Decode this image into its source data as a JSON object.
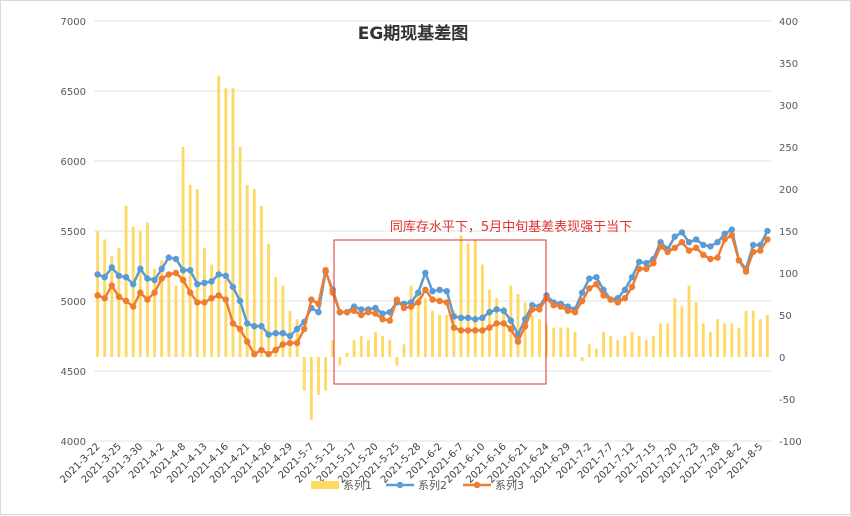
{
  "chart_data": {
    "type": "bar+line",
    "title": "EG期现基差图",
    "annotation": "同库存水平下，5月中旬基差表现强于当下",
    "xlabel": "",
    "ylabel": "",
    "ylim": [
      4000,
      7000
    ],
    "y2lim": [
      -100,
      400
    ],
    "y_ticks": [
      "7000",
      "6500",
      "6000",
      "5500",
      "5000",
      "4500",
      "4000"
    ],
    "y2_ticks": [
      "400",
      "350",
      "300",
      "250",
      "200",
      "150",
      "100",
      "50",
      "0",
      "-50",
      "-100"
    ],
    "grid": "horizontal",
    "legend_position": "bottom",
    "categories": [
      "2021-3-22",
      "2021-3-23",
      "2021-3-24",
      "2021-3-25",
      "2021-3-26",
      "2021-3-29",
      "2021-3-30",
      "2021-3-31",
      "2021-4-1",
      "2021-4-2",
      "2021-4-6",
      "2021-4-7",
      "2021-4-8",
      "2021-4-9",
      "2021-4-12",
      "2021-4-13",
      "2021-4-14",
      "2021-4-15",
      "2021-4-16",
      "2021-4-19",
      "2021-4-20",
      "2021-4-21",
      "2021-4-22",
      "2021-4-23",
      "2021-4-26",
      "2021-4-27",
      "2021-4-28",
      "2021-4-29",
      "2021-4-30",
      "2021-5-6",
      "2021-5-7",
      "2021-5-10",
      "2021-5-11",
      "2021-5-12",
      "2021-5-13",
      "2021-5-14",
      "2021-5-17",
      "2021-5-18",
      "2021-5-19",
      "2021-5-20",
      "2021-5-21",
      "2021-5-24",
      "2021-5-25",
      "2021-5-26",
      "2021-5-27",
      "2021-5-28",
      "2021-5-31",
      "2021-6-1",
      "2021-6-2",
      "2021-6-3",
      "2021-6-4",
      "2021-6-7",
      "2021-6-8",
      "2021-6-9",
      "2021-6-10",
      "2021-6-11",
      "2021-6-15",
      "2021-6-16",
      "2021-6-17",
      "2021-6-18",
      "2021-6-21",
      "2021-6-22",
      "2021-6-23",
      "2021-6-24",
      "2021-6-25",
      "2021-6-28",
      "2021-6-29",
      "2021-6-30",
      "2021-7-1",
      "2021-7-2",
      "2021-7-5",
      "2021-7-6",
      "2021-7-7",
      "2021-7-8",
      "2021-7-9",
      "2021-7-12",
      "2021-7-13",
      "2021-7-14",
      "2021-7-15",
      "2021-7-16",
      "2021-7-19",
      "2021-7-20",
      "2021-7-21",
      "2021-7-22",
      "2021-7-23",
      "2021-7-26",
      "2021-7-27",
      "2021-7-28",
      "2021-7-29",
      "2021-7-30",
      "2021-8-2",
      "2021-8-3",
      "2021-8-4",
      "2021-8-5",
      "2021-8-6"
    ],
    "x_tick_labels": [
      "2021-3-22",
      "2021-3-25",
      "2021-3-30",
      "2021-4-2",
      "2021-4-8",
      "2021-4-13",
      "2021-4-16",
      "2021-4-21",
      "2021-4-26",
      "2021-4-29",
      "2021-5-7",
      "2021-5-12",
      "2021-5-17",
      "2021-5-20",
      "2021-5-25",
      "2021-5-28",
      "2021-6-2",
      "2021-6-7",
      "2021-6-10",
      "2021-6-16",
      "2021-6-21",
      "2021-6-24",
      "2021-6-29",
      "2021-7-2",
      "2021-7-7",
      "2021-7-12",
      "2021-7-15",
      "2021-7-20",
      "2021-7-23",
      "2021-7-28",
      "2021-8-2",
      "2021-8-5"
    ],
    "series": [
      {
        "name": "系列1",
        "type": "bar",
        "axis": "secondary",
        "color": "#ffd966",
        "values": [
          150,
          140,
          120,
          130,
          180,
          155,
          150,
          160,
          105,
          115,
          95,
          85,
          250,
          205,
          200,
          130,
          110,
          335,
          320,
          320,
          250,
          205,
          200,
          180,
          135,
          95,
          85,
          55,
          45,
          -40,
          -75,
          -45,
          -40,
          20,
          -10,
          5,
          20,
          25,
          20,
          30,
          25,
          20,
          -10,
          15,
          85,
          75,
          70,
          55,
          50,
          50,
          55,
          145,
          135,
          140,
          110,
          80,
          70,
          60,
          85,
          75,
          65,
          50,
          45,
          40,
          35,
          35,
          35,
          30,
          -5,
          15,
          10,
          30,
          25,
          20,
          25,
          30,
          25,
          20,
          25,
          40,
          40,
          70,
          60,
          85,
          65,
          40,
          30,
          45,
          40,
          40,
          35,
          55,
          55,
          45,
          50
        ]
      },
      {
        "name": "系列2",
        "type": "line",
        "axis": "primary",
        "color": "#5b9bd5",
        "values": [
          5190,
          5170,
          5240,
          5180,
          5170,
          5120,
          5230,
          5160,
          5150,
          5230,
          5310,
          5300,
          5220,
          5220,
          5120,
          5130,
          5140,
          5190,
          5180,
          5100,
          5000,
          4840,
          4820,
          4820,
          4760,
          4770,
          4770,
          4750,
          4800,
          4850,
          4950,
          4920,
          5210,
          5080,
          4920,
          4920,
          4960,
          4940,
          4940,
          4950,
          4910,
          4920,
          4990,
          4980,
          4990,
          5060,
          5200,
          5070,
          5080,
          5070,
          4890,
          4880,
          4880,
          4870,
          4880,
          4920,
          4940,
          4930,
          4860,
          4760,
          4870,
          4970,
          4960,
          5040,
          4990,
          4980,
          4960,
          4940,
          5060,
          5160,
          5170,
          5080,
          5010,
          5020,
          5080,
          5170,
          5280,
          5270,
          5300,
          5420,
          5370,
          5460,
          5490,
          5420,
          5440,
          5400,
          5390,
          5420,
          5480,
          5510,
          5290,
          5230,
          5400,
          5400,
          5500
        ]
      },
      {
        "name": "系列3",
        "type": "line",
        "axis": "primary",
        "color": "#ed7d31",
        "values": [
          5040,
          5020,
          5110,
          5030,
          5000,
          4960,
          5060,
          5010,
          5060,
          5160,
          5190,
          5200,
          5150,
          5060,
          4990,
          4990,
          5020,
          5040,
          5010,
          4840,
          4800,
          4710,
          4620,
          4650,
          4620,
          4650,
          4690,
          4700,
          4700,
          4800,
          5010,
          4980,
          5220,
          5060,
          4920,
          4920,
          4930,
          4900,
          4920,
          4910,
          4870,
          4860,
          5010,
          4950,
          4960,
          4990,
          5080,
          5010,
          5000,
          4990,
          4810,
          4790,
          4790,
          4790,
          4790,
          4810,
          4840,
          4840,
          4800,
          4710,
          4820,
          4940,
          4940,
          5020,
          4970,
          4960,
          4930,
          4920,
          5000,
          5090,
          5120,
          5040,
          5010,
          4990,
          5020,
          5100,
          5230,
          5230,
          5270,
          5390,
          5350,
          5380,
          5420,
          5360,
          5380,
          5330,
          5300,
          5310,
          5440,
          5470,
          5290,
          5210,
          5350,
          5360,
          5440
        ]
      }
    ]
  }
}
